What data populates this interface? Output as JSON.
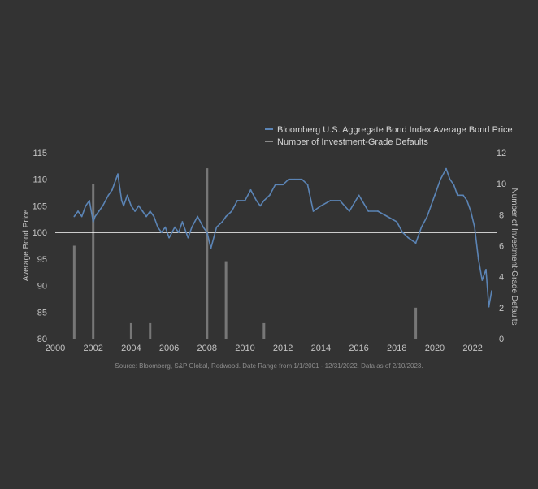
{
  "chart_data": {
    "type": "line",
    "title": "",
    "x_axis": {
      "label": "",
      "range": [
        2000,
        2023.3
      ],
      "ticks": [
        2000,
        2002,
        2004,
        2006,
        2008,
        2010,
        2012,
        2014,
        2016,
        2018,
        2020,
        2022
      ]
    },
    "y_axis_left": {
      "label": "Average Bond Price",
      "range": [
        80,
        115
      ],
      "ticks": [
        80,
        85,
        90,
        95,
        100,
        105,
        110,
        115
      ]
    },
    "y_axis_right": {
      "label": "Number of Investment-Grade Defaults",
      "range": [
        0,
        12
      ],
      "ticks": [
        0,
        2,
        4,
        6,
        8,
        10,
        12
      ]
    },
    "reference_line": {
      "y": 100
    },
    "legend_position": "top-right",
    "series": [
      {
        "name": "Bloomberg U.S. Aggregate Bond Index Average Bond Price",
        "type": "line",
        "axis": "left",
        "color": "#5b84b5",
        "x": [
          2001.0,
          2001.2,
          2001.4,
          2001.6,
          2001.8,
          2002.0,
          2002.1,
          2002.3,
          2002.5,
          2002.8,
          2003.0,
          2003.3,
          2003.5,
          2003.6,
          2003.8,
          2004.0,
          2004.2,
          2004.4,
          2004.6,
          2004.8,
          2005.0,
          2005.2,
          2005.4,
          2005.6,
          2005.8,
          2006.0,
          2006.3,
          2006.5,
          2006.7,
          2007.0,
          2007.2,
          2007.5,
          2007.8,
          2008.0,
          2008.2,
          2008.5,
          2008.8,
          2009.0,
          2009.3,
          2009.6,
          2010.0,
          2010.3,
          2010.6,
          2010.8,
          2011.0,
          2011.3,
          2011.6,
          2012.0,
          2012.3,
          2012.6,
          2013.0,
          2013.3,
          2013.6,
          2014.0,
          2014.5,
          2015.0,
          2015.5,
          2016.0,
          2016.5,
          2017.0,
          2017.5,
          2018.0,
          2018.3,
          2018.6,
          2019.0,
          2019.3,
          2019.6,
          2020.0,
          2020.3,
          2020.6,
          2020.8,
          2021.0,
          2021.2,
          2021.5,
          2021.7,
          2021.9,
          2022.1,
          2022.3,
          2022.5,
          2022.7,
          2022.85,
          2023.0
        ],
        "values": [
          103,
          104,
          103,
          105,
          106,
          102,
          103,
          104,
          105,
          107,
          108,
          111,
          106,
          105,
          107,
          105,
          104,
          105,
          104,
          103,
          104,
          103,
          101,
          100,
          101,
          99,
          101,
          100,
          102,
          99,
          101,
          103,
          101,
          100,
          97,
          101,
          102,
          103,
          104,
          106,
          106,
          108,
          106,
          105,
          106,
          107,
          109,
          109,
          110,
          110,
          110,
          109,
          104,
          105,
          106,
          106,
          104,
          107,
          104,
          104,
          103,
          102,
          100,
          99,
          98,
          101,
          103,
          107,
          110,
          112,
          110,
          109,
          107,
          107,
          106,
          104,
          101,
          95,
          91,
          93,
          86,
          89
        ]
      },
      {
        "name": "Number of Investment-Grade Defaults",
        "type": "bar",
        "axis": "right",
        "color": "#777777",
        "x": [
          2001,
          2002,
          2004,
          2005,
          2008,
          2009,
          2011,
          2019
        ],
        "values": [
          6,
          10,
          1,
          1,
          11,
          5,
          1,
          2
        ]
      }
    ]
  },
  "footer": {
    "source_note": "Source: Bloomberg, S&P Global, Redwood. Date Range from 1/1/2001 - 12/31/2022. Data as of 2/10/2023."
  }
}
